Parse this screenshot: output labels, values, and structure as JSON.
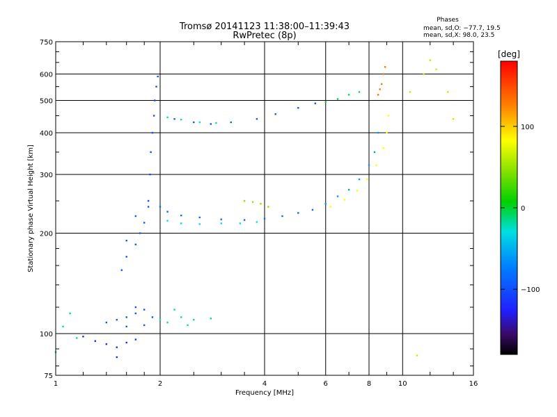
{
  "chart_data": {
    "type": "scatter",
    "title_line1": "Tromsø 20141123 11:38:00–11:39:43",
    "title_line2": "RwPretec (8p)",
    "stats": {
      "heading": "Phases",
      "line_o": "mean, sd,O: −77.7, 19.5",
      "line_x": "mean, sd,X:  98.0, 23.5"
    },
    "xlabel": "Frequency [MHz]",
    "ylabel": "Stationary phase Virtual Height [km]",
    "x_scale": "log",
    "y_scale": "log",
    "xlim": [
      1,
      16
    ],
    "ylim": [
      75,
      750
    ],
    "x_ticks": [
      1,
      2,
      4,
      6,
      8,
      10,
      16
    ],
    "x_tick_labels": [
      "1",
      "2",
      "4",
      "6",
      "8",
      "10",
      "16"
    ],
    "y_ticks": [
      75,
      100,
      200,
      300,
      400,
      500,
      600,
      750
    ],
    "y_tick_labels": [
      "75",
      "100",
      "200",
      "300",
      "400",
      "500",
      "600",
      "750"
    ],
    "grid": true,
    "colorbar": {
      "label": "[deg]",
      "range": [
        -180,
        180
      ],
      "ticks": [
        100,
        0,
        -100
      ],
      "tick_labels": [
        "100",
        "0",
        "−100"
      ]
    },
    "traces": [
      {
        "name": "lower_E_layer",
        "phase": -95,
        "points": [
          [
            1.5,
            110
          ],
          [
            1.6,
            112
          ],
          [
            1.7,
            115
          ],
          [
            1.8,
            118
          ],
          [
            1.9,
            112
          ],
          [
            1.6,
            105
          ],
          [
            1.4,
            108
          ],
          [
            1.7,
            120
          ],
          [
            1.8,
            106
          ]
        ]
      },
      {
        "name": "E_layer_cyan",
        "phase": -20,
        "points": [
          [
            2.0,
            110
          ],
          [
            2.1,
            108
          ],
          [
            2.3,
            112
          ],
          [
            2.5,
            110
          ],
          [
            2.8,
            111
          ],
          [
            2.2,
            118
          ],
          [
            2.4,
            106
          ]
        ]
      },
      {
        "name": "low_sporadic",
        "phase": -120,
        "points": [
          [
            1.3,
            95
          ],
          [
            1.4,
            93
          ],
          [
            1.5,
            91
          ],
          [
            1.6,
            94
          ],
          [
            1.5,
            85
          ],
          [
            1.7,
            96
          ],
          [
            1.2,
            98
          ]
        ]
      },
      {
        "name": "F1_cusp_lower",
        "phase": -95,
        "points": [
          [
            1.55,
            155
          ],
          [
            1.6,
            170
          ],
          [
            1.7,
            185
          ],
          [
            1.75,
            200
          ],
          [
            1.8,
            215
          ],
          [
            1.85,
            240
          ],
          [
            1.7,
            225
          ],
          [
            1.6,
            190
          ]
        ]
      },
      {
        "name": "F1_cusp_vertical",
        "phase": -100,
        "points": [
          [
            1.85,
            250
          ],
          [
            1.87,
            300
          ],
          [
            1.88,
            350
          ],
          [
            1.9,
            400
          ],
          [
            1.92,
            450
          ],
          [
            1.93,
            500
          ],
          [
            1.95,
            550
          ],
          [
            1.97,
            590
          ]
        ]
      },
      {
        "name": "F2_lower_trace",
        "phase": -85,
        "points": [
          [
            2.0,
            240
          ],
          [
            2.1,
            232
          ],
          [
            2.3,
            226
          ],
          [
            2.6,
            223
          ],
          [
            3.0,
            220
          ],
          [
            3.5,
            219
          ],
          [
            4.0,
            221
          ],
          [
            4.5,
            225
          ],
          [
            5.0,
            230
          ],
          [
            5.5,
            235
          ]
        ]
      },
      {
        "name": "F2_lower_cyan",
        "phase": -30,
        "points": [
          [
            2.1,
            218
          ],
          [
            2.3,
            214
          ],
          [
            2.6,
            213
          ],
          [
            3.0,
            214
          ],
          [
            3.4,
            214
          ],
          [
            3.8,
            216
          ]
        ]
      },
      {
        "name": "F2_rising_blue",
        "phase": -60,
        "points": [
          [
            6.0,
            245
          ],
          [
            6.5,
            258
          ],
          [
            7.0,
            270
          ],
          [
            7.5,
            290
          ],
          [
            8.0,
            320
          ],
          [
            8.3,
            350
          ],
          [
            8.5,
            400
          ]
        ]
      },
      {
        "name": "F2_rising_yellow",
        "phase": 80,
        "points": [
          [
            6.2,
            240
          ],
          [
            6.8,
            252
          ],
          [
            7.4,
            268
          ],
          [
            7.9,
            290
          ],
          [
            8.4,
            320
          ],
          [
            8.8,
            360
          ],
          [
            9.0,
            400
          ],
          [
            9.1,
            450
          ]
        ]
      },
      {
        "name": "F2_top_orange",
        "phase": 130,
        "points": [
          [
            8.5,
            520
          ],
          [
            8.7,
            560
          ],
          [
            8.8,
            600
          ],
          [
            8.9,
            630
          ],
          [
            8.6,
            540
          ]
        ]
      },
      {
        "name": "F2_upper_arc",
        "phase": -95,
        "points": [
          [
            2.2,
            440
          ],
          [
            2.5,
            430
          ],
          [
            2.8,
            425
          ],
          [
            3.2,
            430
          ],
          [
            3.8,
            440
          ],
          [
            4.3,
            455
          ],
          [
            5.0,
            475
          ],
          [
            5.6,
            490
          ]
        ]
      },
      {
        "name": "F2_upper_arc_cyan",
        "phase": -25,
        "points": [
          [
            2.1,
            445
          ],
          [
            2.3,
            438
          ],
          [
            2.6,
            430
          ],
          [
            2.9,
            428
          ]
        ]
      },
      {
        "name": "upper_arc_right",
        "phase": -10,
        "points": [
          [
            6.0,
            495
          ],
          [
            6.5,
            505
          ],
          [
            7.0,
            520
          ],
          [
            7.5,
            530
          ]
        ]
      },
      {
        "name": "mid_greenyellow",
        "phase": 45,
        "points": [
          [
            3.5,
            250
          ],
          [
            3.7,
            248
          ],
          [
            3.9,
            245
          ],
          [
            4.1,
            240
          ]
        ]
      },
      {
        "name": "far_right_scatter",
        "phase": 60,
        "points": [
          [
            11.5,
            600
          ],
          [
            12.5,
            620
          ],
          [
            13.5,
            530
          ],
          [
            10.5,
            530
          ],
          [
            12.0,
            660
          ],
          [
            14.0,
            440
          ],
          [
            11.0,
            86
          ]
        ]
      },
      {
        "name": "scatter_low_left",
        "phase": -20,
        "points": [
          [
            1.0,
            88
          ],
          [
            1.05,
            105
          ],
          [
            1.15,
            97
          ],
          [
            1.1,
            115
          ]
        ]
      }
    ]
  }
}
